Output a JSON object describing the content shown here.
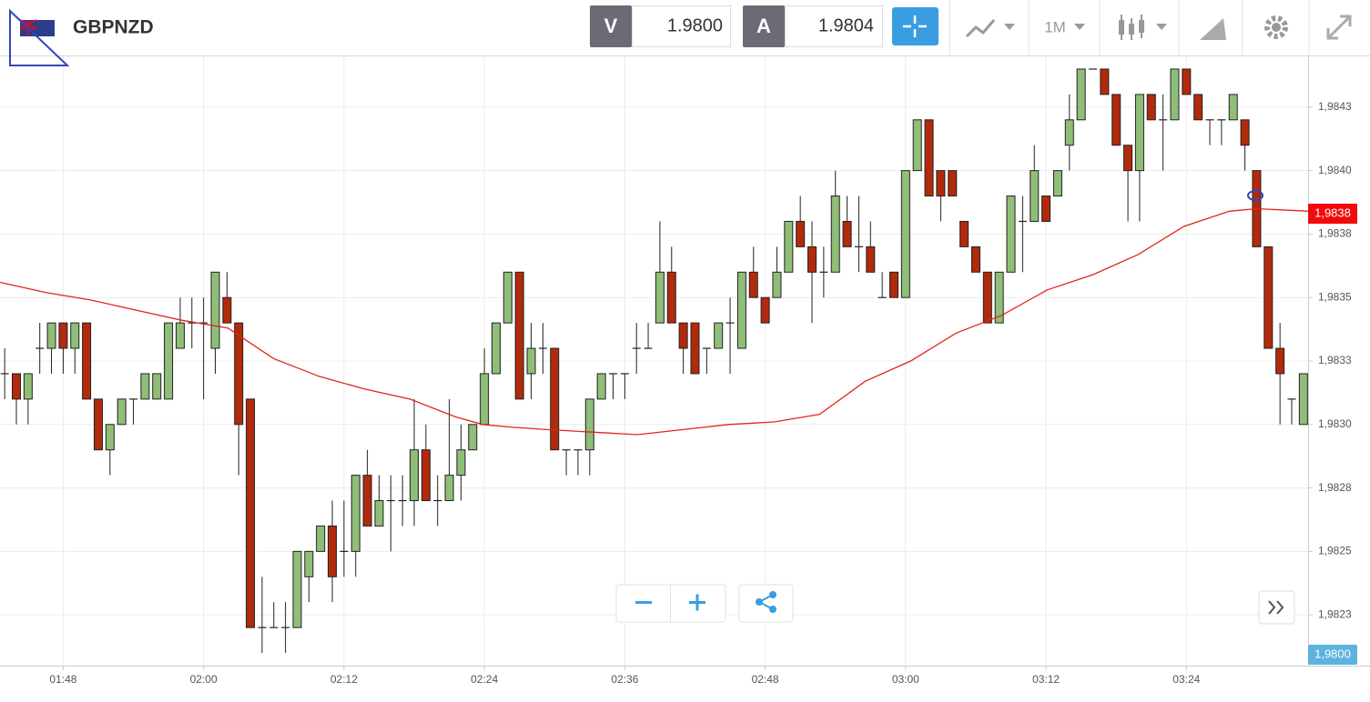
{
  "toolbar": {
    "symbol": "GBPNZD",
    "bid_label": "V",
    "bid": "1.9800",
    "ask_label": "A",
    "ask": "1.9804",
    "timeframe": "1M"
  },
  "chart_data": {
    "type": "candlestick",
    "up_color": "#8fbe78",
    "down_color": "#b22a0c",
    "open": [
      1.9832,
      1.9832,
      1.9831,
      1.9833,
      1.9833,
      1.9834,
      1.9833,
      1.9834,
      1.9831,
      1.9829,
      1.983,
      1.9831,
      1.9831,
      1.9831,
      1.9831,
      1.9833,
      1.9834,
      1.9834,
      1.9833,
      1.9835,
      1.9834,
      1.9831,
      1.9822,
      1.9822,
      1.9822,
      1.9822,
      1.9824,
      1.9825,
      1.9826,
      1.9825,
      1.9825,
      1.9828,
      1.9826,
      1.9827,
      1.9827,
      1.9827,
      1.9829,
      1.9827,
      1.9827,
      1.9828,
      1.9829,
      1.983,
      1.9832,
      1.9834,
      1.9836,
      1.9832,
      1.9833,
      1.9833,
      1.9829,
      1.9829,
      1.9829,
      1.9831,
      1.9832,
      1.9832,
      1.9833,
      1.9833,
      1.9834,
      1.9836,
      1.9834,
      1.9834,
      1.9833,
      1.9833,
      1.9834,
      1.9833,
      1.9836,
      1.9835,
      1.9835,
      1.9836,
      1.9838,
      1.9837,
      1.9836,
      1.9836,
      1.9838,
      1.9837,
      1.9837,
      1.9835,
      1.9836,
      1.9835,
      1.984,
      1.9842,
      1.984,
      1.984,
      1.9838,
      1.9837,
      1.9836,
      1.9834,
      1.9836,
      1.9838,
      1.9838,
      1.9839,
      1.9839,
      1.9841,
      1.9842,
      1.9844,
      1.9844,
      1.9843,
      1.9841,
      1.984,
      1.9843,
      1.9842,
      1.9842,
      1.9844,
      1.9843,
      1.9842,
      1.9842,
      1.9842,
      1.9842,
      1.984,
      1.9837,
      1.9833,
      1.9831,
      1.983
    ],
    "high": [
      1.9833,
      1.9832,
      1.9832,
      1.9834,
      1.9834,
      1.9834,
      1.9834,
      1.9834,
      1.9831,
      1.983,
      1.9831,
      1.9831,
      1.9832,
      1.9832,
      1.9834,
      1.9835,
      1.9835,
      1.9835,
      1.9836,
      1.9836,
      1.9834,
      1.9831,
      1.9824,
      1.9823,
      1.9823,
      1.9825,
      1.9825,
      1.9826,
      1.9827,
      1.9827,
      1.9828,
      1.9829,
      1.9828,
      1.9828,
      1.9828,
      1.9831,
      1.983,
      1.9828,
      1.9831,
      1.983,
      1.983,
      1.9833,
      1.9834,
      1.9836,
      1.9836,
      1.9834,
      1.9834,
      1.9833,
      1.9829,
      1.9829,
      1.9831,
      1.9832,
      1.9832,
      1.9832,
      1.9834,
      1.9834,
      1.9838,
      1.9837,
      1.9834,
      1.9834,
      1.9833,
      1.9834,
      1.9835,
      1.9836,
      1.9837,
      1.9835,
      1.9837,
      1.9838,
      1.9839,
      1.9838,
      1.9837,
      1.984,
      1.9839,
      1.9839,
      1.9838,
      1.9836,
      1.9836,
      1.984,
      1.9842,
      1.9842,
      1.984,
      1.984,
      1.9838,
      1.9837,
      1.9836,
      1.9836,
      1.9839,
      1.9839,
      1.9841,
      1.9839,
      1.984,
      1.9843,
      1.9844,
      1.9844,
      1.9844,
      1.9843,
      1.9841,
      1.9843,
      1.9843,
      1.9843,
      1.9844,
      1.9844,
      1.9843,
      1.9842,
      1.9842,
      1.9843,
      1.9842,
      1.984,
      1.9837,
      1.9834,
      1.9831,
      1.9832
    ],
    "low": [
      1.9831,
      1.983,
      1.983,
      1.9832,
      1.9832,
      1.9832,
      1.9832,
      1.9831,
      1.9829,
      1.9828,
      1.983,
      1.983,
      1.9831,
      1.9831,
      1.9831,
      1.9833,
      1.9833,
      1.9831,
      1.9832,
      1.9834,
      1.9828,
      1.9822,
      1.9821,
      1.9822,
      1.9821,
      1.9822,
      1.9823,
      1.9825,
      1.9823,
      1.9824,
      1.9824,
      1.9826,
      1.9826,
      1.9825,
      1.9826,
      1.9826,
      1.9827,
      1.9826,
      1.9827,
      1.9827,
      1.9829,
      1.983,
      1.9832,
      1.9834,
      1.9831,
      1.9831,
      1.9832,
      1.9829,
      1.9828,
      1.9828,
      1.9828,
      1.9831,
      1.9831,
      1.9831,
      1.9832,
      1.9833,
      1.9834,
      1.9834,
      1.9832,
      1.9832,
      1.9832,
      1.9833,
      1.9832,
      1.9833,
      1.9835,
      1.9834,
      1.9835,
      1.9836,
      1.9837,
      1.9834,
      1.9835,
      1.9836,
      1.9837,
      1.9836,
      1.9836,
      1.9835,
      1.9835,
      1.9835,
      1.984,
      1.9839,
      1.9838,
      1.9839,
      1.9837,
      1.9836,
      1.9834,
      1.9834,
      1.9836,
      1.9836,
      1.9838,
      1.9838,
      1.9839,
      1.984,
      1.9842,
      1.9844,
      1.9843,
      1.9841,
      1.9838,
      1.9838,
      1.9842,
      1.984,
      1.9842,
      1.9843,
      1.9842,
      1.9841,
      1.9841,
      1.9842,
      1.984,
      1.9837,
      1.9833,
      1.983,
      1.983,
      1.983
    ],
    "close": [
      1.9832,
      1.9831,
      1.9832,
      1.9833,
      1.9834,
      1.9833,
      1.9834,
      1.9831,
      1.9829,
      1.983,
      1.9831,
      1.9831,
      1.9832,
      1.9832,
      1.9834,
      1.9834,
      1.9834,
      1.9834,
      1.9836,
      1.9834,
      1.983,
      1.9822,
      1.9822,
      1.9822,
      1.9822,
      1.9825,
      1.9825,
      1.9826,
      1.9824,
      1.9825,
      1.9828,
      1.9826,
      1.9827,
      1.9827,
      1.9827,
      1.9829,
      1.9827,
      1.9827,
      1.9828,
      1.9829,
      1.983,
      1.9832,
      1.9834,
      1.9836,
      1.9831,
      1.9833,
      1.9833,
      1.9829,
      1.9829,
      1.9829,
      1.9831,
      1.9832,
      1.9832,
      1.9832,
      1.9833,
      1.9833,
      1.9836,
      1.9834,
      1.9833,
      1.9832,
      1.9833,
      1.9834,
      1.9834,
      1.9836,
      1.9835,
      1.9834,
      1.9836,
      1.9838,
      1.9837,
      1.9836,
      1.9836,
      1.9839,
      1.9837,
      1.9837,
      1.9836,
      1.9835,
      1.9835,
      1.984,
      1.9842,
      1.9839,
      1.9839,
      1.9839,
      1.9837,
      1.9836,
      1.9834,
      1.9836,
      1.9839,
      1.9838,
      1.984,
      1.9838,
      1.984,
      1.9842,
      1.9844,
      1.9844,
      1.9843,
      1.9841,
      1.984,
      1.9843,
      1.9842,
      1.9842,
      1.9844,
      1.9843,
      1.9842,
      1.9842,
      1.9842,
      1.9843,
      1.9841,
      1.9837,
      1.9833,
      1.9832,
      1.9831,
      1.9832
    ],
    "ma": {
      "color": "#e0251b",
      "x": [
        -0.39,
        3.5,
        7.39,
        11.28,
        15.18,
        19.07,
        22.96,
        26.85,
        30.74,
        34.63,
        38.52,
        40.86,
        43.19,
        46.3,
        50.19,
        54.09,
        57.98,
        61.87,
        65.76,
        69.65,
        73.54,
        77.43,
        81.32,
        85.21,
        89.11,
        93.0,
        96.89,
        100.78,
        104.67,
        107.0,
        111.44
      ],
      "values": [
        1.98356,
        1.98352,
        1.98349,
        1.98345,
        1.98341,
        1.98338,
        1.98326,
        1.98319,
        1.98314,
        1.9831,
        1.98303,
        1.983,
        1.98299,
        1.98298,
        1.98297,
        1.98296,
        1.98298,
        1.983,
        1.98301,
        1.98304,
        1.98317,
        1.98325,
        1.98336,
        1.98343,
        1.98353,
        1.98359,
        1.98367,
        1.98378,
        1.98384,
        1.98385,
        1.98384
      ]
    },
    "ylim": [
      1.98205,
      1.98445
    ],
    "yticks": [
      {
        "value": 1.98225,
        "label": "1,9823"
      },
      {
        "value": 1.9825,
        "label": "1,9825"
      },
      {
        "value": 1.98275,
        "label": "1,9828"
      },
      {
        "value": 1.983,
        "label": "1,9830"
      },
      {
        "value": 1.98325,
        "label": "1,9833"
      },
      {
        "value": 1.9835,
        "label": "1,9835"
      },
      {
        "value": 1.98375,
        "label": "1,9838"
      },
      {
        "value": 1.984,
        "label": "1,9840"
      },
      {
        "value": 1.98425,
        "label": "1,9843"
      }
    ],
    "xlim": [
      -0.4,
      111.4
    ],
    "xticks": [
      {
        "value": 5,
        "label": "01:48"
      },
      {
        "value": 17,
        "label": "02:00"
      },
      {
        "value": 29,
        "label": "02:12"
      },
      {
        "value": 41,
        "label": "02:24"
      },
      {
        "value": 53,
        "label": "02:36"
      },
      {
        "value": 65,
        "label": "02:48"
      },
      {
        "value": 77,
        "label": "03:00"
      },
      {
        "value": 89,
        "label": "03:12"
      },
      {
        "value": 101,
        "label": "03:24"
      }
    ],
    "grid": true,
    "last_price_tag": "1,9838",
    "bottom_price_tag": "1,9800"
  }
}
